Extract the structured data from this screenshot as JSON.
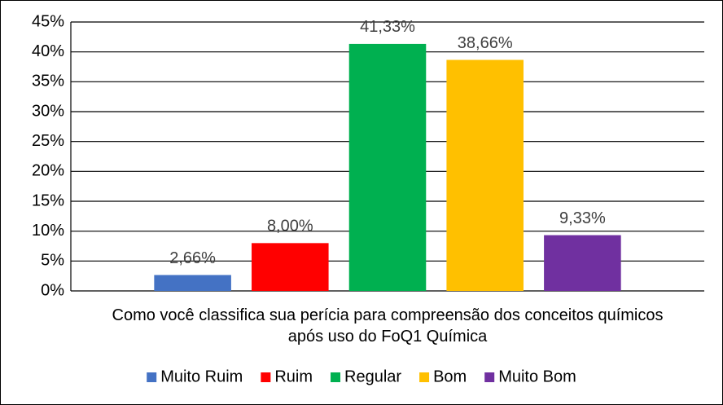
{
  "chart_data": {
    "type": "bar",
    "categories": [
      "Como você classifica sua perícia para compreensão dos conceitos químicos após uso do FoQ1 Química"
    ],
    "series": [
      {
        "name": "Muito Ruim",
        "color": "#4472c4",
        "values": [
          2.66
        ],
        "value_labels": [
          "2,66%"
        ]
      },
      {
        "name": "Ruim",
        "color": "#ff0000",
        "values": [
          8.0
        ],
        "value_labels": [
          "8,00%"
        ]
      },
      {
        "name": "Regular",
        "color": "#00b050",
        "values": [
          41.33
        ],
        "value_labels": [
          "41,33%"
        ]
      },
      {
        "name": "Bom",
        "color": "#ffc000",
        "values": [
          38.66
        ],
        "value_labels": [
          "38,66%"
        ]
      },
      {
        "name": "Muito Bom",
        "color": "#7030a0",
        "values": [
          9.33
        ],
        "value_labels": [
          "9,33%"
        ]
      }
    ],
    "ylim": [
      0,
      45
    ],
    "yticks": [
      {
        "value": 0,
        "label": "0%"
      },
      {
        "value": 5,
        "label": "5%"
      },
      {
        "value": 10,
        "label": "10%"
      },
      {
        "value": 15,
        "label": "15%"
      },
      {
        "value": 20,
        "label": "20%"
      },
      {
        "value": 25,
        "label": "25%"
      },
      {
        "value": 30,
        "label": "30%"
      },
      {
        "value": 35,
        "label": "35%"
      },
      {
        "value": 40,
        "label": "40%"
      },
      {
        "value": 45,
        "label": "45%"
      }
    ],
    "grid": true,
    "legend": "bottom"
  }
}
